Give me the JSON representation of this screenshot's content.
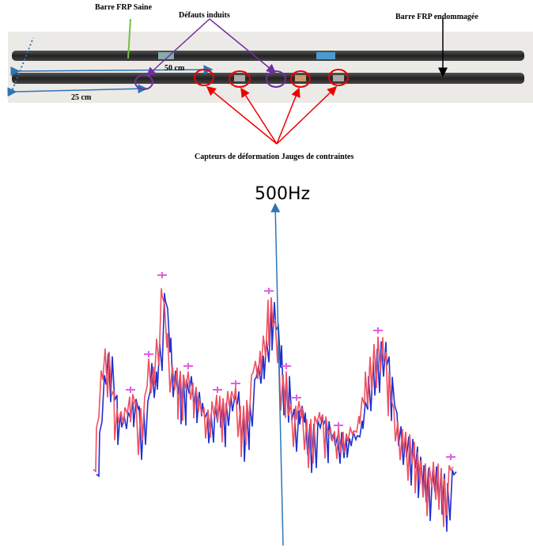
{
  "photo": {
    "labels": {
      "healthy_bar": "Barre FRP Saine",
      "defects": "Défauts induits",
      "damaged_bar": "Barre FRP endommagée",
      "length_50": "50 cm",
      "length_25": "25 cm",
      "sensors": "Capteurs de déformation Jauges de contraintes"
    }
  },
  "plot": {
    "frequency_label": "500Hz"
  }
}
